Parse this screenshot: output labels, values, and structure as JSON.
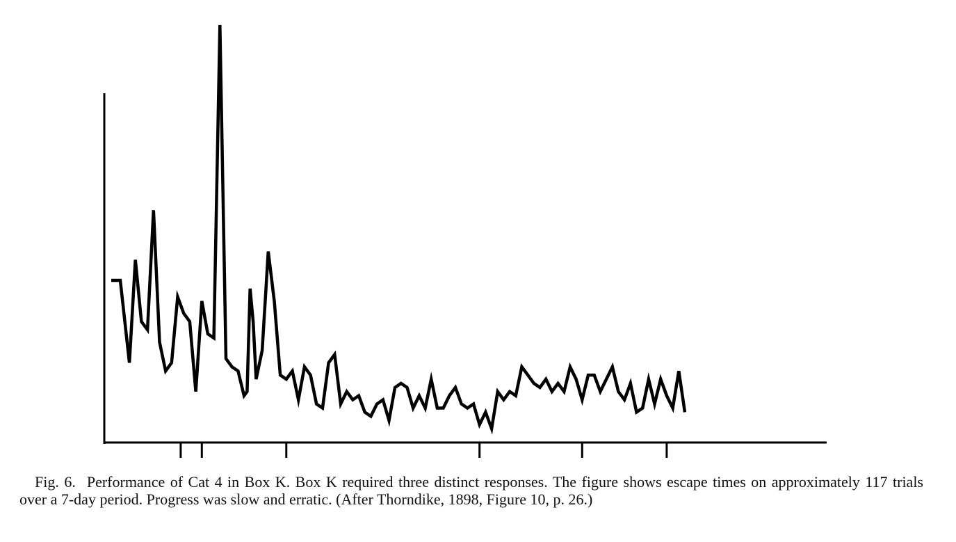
{
  "caption": {
    "label": "Fig. 6.",
    "text": "Performance of Cat 4 in Box K. Box K required three distinct responses. The figure shows escape times on approximately 117 trials over a 7-day period. Progress was slow and erratic. (After Thorndike, 1898, Figure 10, p. 26.)"
  },
  "chart_data": {
    "type": "line",
    "title": "",
    "xlabel": "",
    "ylabel": "",
    "grid": false,
    "legend": "none",
    "line_color": "#000000",
    "y_axis_ticks": false,
    "x_tick_labels": false,
    "xlim": [
      0,
      117
    ],
    "ylim": [
      0,
      100
    ],
    "x_ticks": [
      11.5,
      15,
      29,
      61,
      78,
      92
    ],
    "series": [
      {
        "x": [
          0,
          1.5,
          3,
          4,
          5,
          6,
          7,
          8,
          9,
          10,
          11,
          12,
          13,
          14,
          15,
          16,
          17,
          18,
          19,
          20,
          21,
          22,
          22.5,
          23,
          23.5,
          24,
          25,
          26,
          27,
          28,
          29,
          30,
          31,
          32,
          33,
          34,
          35,
          36,
          37,
          38,
          39,
          40,
          41,
          42,
          43,
          44,
          45,
          46,
          47,
          48,
          49,
          50,
          51,
          52,
          53,
          54,
          55,
          56,
          57,
          58,
          59,
          60,
          61,
          62,
          63,
          64,
          65,
          66,
          67,
          68,
          69,
          70,
          71,
          72,
          73,
          74,
          75,
          76,
          77,
          78,
          79,
          80,
          81,
          82,
          83,
          84,
          85,
          86,
          87,
          88,
          89,
          90,
          91,
          92,
          93,
          94,
          95
        ],
        "values": [
          37,
          37,
          17,
          42,
          27,
          25,
          54,
          22,
          15,
          17,
          33,
          29,
          27,
          10,
          32,
          24,
          23,
          99,
          18,
          16,
          15,
          9,
          10,
          35,
          27,
          13,
          20,
          44,
          32,
          14,
          13,
          15,
          8,
          16,
          14,
          7,
          6,
          17,
          19,
          7,
          10,
          8,
          9,
          5,
          4,
          7,
          8,
          3,
          11,
          12,
          11,
          6,
          9,
          6,
          13,
          6,
          6,
          9,
          11,
          7,
          6,
          7,
          2,
          5,
          1,
          10,
          8,
          10,
          9,
          16,
          14,
          12,
          11,
          13,
          10,
          12,
          10,
          16,
          13,
          8,
          14,
          14,
          10,
          13,
          16,
          10,
          8,
          12,
          5,
          6,
          13,
          7,
          13,
          9,
          6,
          15,
          5
        ]
      }
    ]
  }
}
